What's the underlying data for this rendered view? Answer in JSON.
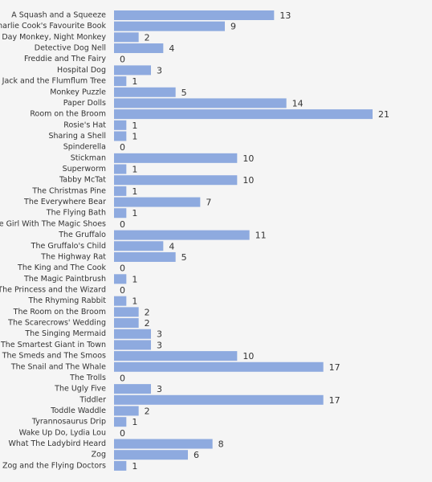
{
  "chart_data": {
    "type": "bar",
    "orientation": "horizontal",
    "color": "#8eaadf",
    "categories": [
      "A Squash and a Squeeze",
      "Charlie Cook's Favourite Book",
      "Day Monkey, Night Monkey",
      "Detective Dog Nell",
      "Freddie and The Fairy",
      "Hospital Dog",
      "Jack and the Flumflum Tree",
      "Monkey Puzzle",
      "Paper Dolls",
      "Room on the Broom",
      "Rosie's Hat",
      "Sharing a Shell",
      "Spinderella",
      "Stickman",
      "Superworm",
      "Tabby McTat",
      "The Christmas Pine",
      "The Everywhere Bear",
      "The Flying Bath",
      "The Girl With The Magic Shoes",
      "The Gruffalo",
      "The Gruffalo's Child",
      "The Highway Rat",
      "The King and The Cook",
      "The Magic Paintbrush",
      "The Princess and the Wizard",
      "The Rhyming Rabbit",
      "The Room on the Broom",
      "The Scarecrows' Wedding",
      "The Singing Mermaid",
      "The Smartest Giant in Town",
      "The Smeds and The Smoos",
      "The Snail and The Whale",
      "The Trolls",
      "The Ugly Five",
      "Tiddler",
      "Toddle Waddle",
      "Tyrannosaurus Drip",
      "Wake Up Do, Lydia Lou",
      "What The Ladybird Heard",
      "Zog",
      "Zog and the Flying Doctors"
    ],
    "values": [
      13,
      9,
      2,
      4,
      0,
      3,
      1,
      5,
      14,
      21,
      1,
      1,
      0,
      10,
      1,
      10,
      1,
      7,
      1,
      0,
      11,
      4,
      5,
      0,
      1,
      0,
      1,
      2,
      2,
      3,
      3,
      10,
      17,
      0,
      3,
      17,
      2,
      1,
      0,
      8,
      6,
      1
    ],
    "xlim": [
      0,
      21
    ]
  }
}
